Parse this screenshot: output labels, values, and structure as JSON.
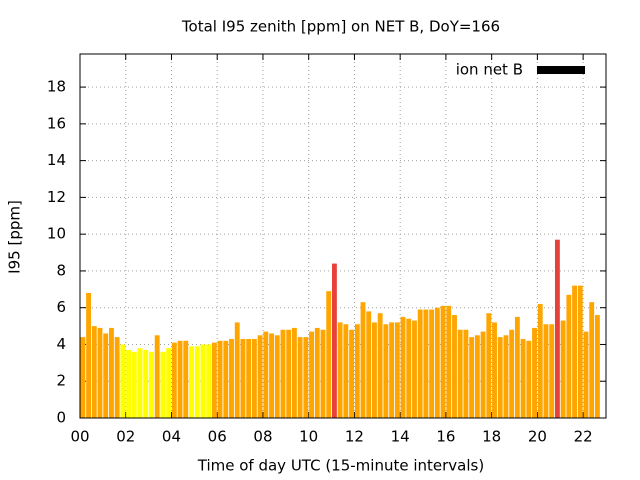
{
  "chart_data": {
    "type": "bar",
    "title": "Total I95 zenith [ppm] on NET B, DoY=166",
    "x_label": "Time of day UTC (15-minute intervals)",
    "y_label": "I95 [ppm]",
    "xlim": [
      0,
      23
    ],
    "ylim": [
      0,
      19.8
    ],
    "xticks": [
      {
        "value": 0,
        "label": "00"
      },
      {
        "value": 2,
        "label": "02"
      },
      {
        "value": 4,
        "label": "04"
      },
      {
        "value": 6,
        "label": "06"
      },
      {
        "value": 8,
        "label": "08"
      },
      {
        "value": 10,
        "label": "10"
      },
      {
        "value": 12,
        "label": "12"
      },
      {
        "value": 14,
        "label": "14"
      },
      {
        "value": 16,
        "label": "16"
      },
      {
        "value": 18,
        "label": "18"
      },
      {
        "value": 20,
        "label": "20"
      },
      {
        "value": 22,
        "label": "22"
      }
    ],
    "yticks": [
      0,
      2,
      4,
      6,
      8,
      10,
      12,
      14,
      16,
      18
    ],
    "grid": true,
    "legend": "upper right",
    "x": [
      0.125,
      0.375,
      0.625,
      0.875,
      1.125,
      1.375,
      1.625,
      1.875,
      2.125,
      2.375,
      2.625,
      2.875,
      3.125,
      3.375,
      3.625,
      3.875,
      4.125,
      4.375,
      4.625,
      4.875,
      5.125,
      5.375,
      5.625,
      5.875,
      6.125,
      6.375,
      6.625,
      6.875,
      7.125,
      7.375,
      7.625,
      7.875,
      8.125,
      8.375,
      8.625,
      8.875,
      9.125,
      9.375,
      9.625,
      9.875,
      10.125,
      10.375,
      10.625,
      10.875,
      11.125,
      11.375,
      11.625,
      11.875,
      12.125,
      12.375,
      12.625,
      12.875,
      13.125,
      13.375,
      13.625,
      13.875,
      14.125,
      14.375,
      14.625,
      14.875,
      15.125,
      15.375,
      15.625,
      15.875,
      16.125,
      16.375,
      16.625,
      16.875,
      17.125,
      17.375,
      17.625,
      17.875,
      18.125,
      18.375,
      18.625,
      18.875,
      19.125,
      19.375,
      19.625,
      19.875,
      20.125,
      20.375,
      20.625,
      20.875,
      21.125,
      21.375,
      21.625,
      21.875,
      22.125,
      22.375,
      22.625
    ],
    "series": [
      {
        "name": "ion net B",
        "color": "#000000",
        "values": [
          4.4,
          6.8,
          5.0,
          4.9,
          4.6,
          4.9,
          4.4,
          4.0,
          3.7,
          3.6,
          3.8,
          3.7,
          3.6,
          4.5,
          3.6,
          3.8,
          4.1,
          4.2,
          4.2,
          3.9,
          3.9,
          4.0,
          4.0,
          4.1,
          4.2,
          4.2,
          4.3,
          5.2,
          4.3,
          4.3,
          4.3,
          4.5,
          4.7,
          4.6,
          4.5,
          4.8,
          4.8,
          4.9,
          4.4,
          4.4,
          4.7,
          4.9,
          4.8,
          6.9,
          8.4,
          5.2,
          5.1,
          4.8,
          5.1,
          6.3,
          5.8,
          5.2,
          5.7,
          5.1,
          5.2,
          5.2,
          5.5,
          5.4,
          5.3,
          5.9,
          5.9,
          5.9,
          6.0,
          6.1,
          6.1,
          5.6,
          4.8,
          4.8,
          4.4,
          4.5,
          4.7,
          5.7,
          5.2,
          4.4,
          4.5,
          4.8,
          5.5,
          4.3,
          4.2,
          4.9,
          6.2,
          5.1,
          5.1,
          9.7,
          5.3,
          6.7,
          7.2,
          7.2,
          4.7,
          6.3,
          5.6
        ],
        "colors": [
          "#ffa500",
          "#ffa500",
          "#ffa500",
          "#ffa500",
          "#ffa500",
          "#ffa500",
          "#ffa500",
          "#ffff00",
          "#ffff00",
          "#ffff00",
          "#ffff00",
          "#ffff00",
          "#ffff00",
          "#ffa500",
          "#ffff00",
          "#ffff00",
          "#ffa500",
          "#ffa500",
          "#ffa500",
          "#ffff00",
          "#ffff00",
          "#ffff00",
          "#ffff00",
          "#ffa500",
          "#ffa500",
          "#ffa500",
          "#ffa500",
          "#ffa500",
          "#ffa500",
          "#ffa500",
          "#ffa500",
          "#ffa500",
          "#ffa500",
          "#ffa500",
          "#ffa500",
          "#ffa500",
          "#ffa500",
          "#ffa500",
          "#ffa500",
          "#ffa500",
          "#ffa500",
          "#ffa500",
          "#ffa500",
          "#ffa500",
          "#e8413c",
          "#ffa500",
          "#ffa500",
          "#ffa500",
          "#ffa500",
          "#ffa500",
          "#ffa500",
          "#ffa500",
          "#ffa500",
          "#ffa500",
          "#ffa500",
          "#ffa500",
          "#ffa500",
          "#ffa500",
          "#ffa500",
          "#ffa500",
          "#ffa500",
          "#ffa500",
          "#ffa500",
          "#ffa500",
          "#ffa500",
          "#ffa500",
          "#ffa500",
          "#ffa500",
          "#ffa500",
          "#ffa500",
          "#ffa500",
          "#ffa500",
          "#ffa500",
          "#ffa500",
          "#ffa500",
          "#ffa500",
          "#ffa500",
          "#ffa500",
          "#ffa500",
          "#ffa500",
          "#ffa500",
          "#ffa500",
          "#ffa500",
          "#e8413c",
          "#ffa500",
          "#ffa500",
          "#ffa500",
          "#ffa500",
          "#ffa500",
          "#ffa500",
          "#ffa500"
        ]
      }
    ]
  }
}
